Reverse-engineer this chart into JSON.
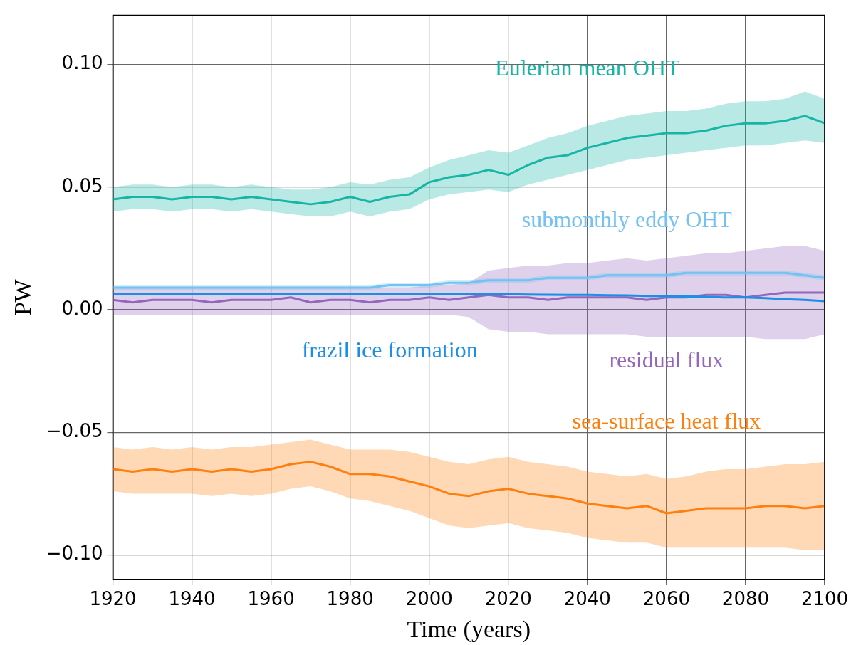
{
  "chart_data": {
    "type": "line",
    "xlabel": "Time (years)",
    "ylabel": "PW",
    "x": [
      1920,
      1925,
      1930,
      1935,
      1940,
      1945,
      1950,
      1955,
      1960,
      1965,
      1970,
      1975,
      1980,
      1985,
      1990,
      1995,
      2000,
      2005,
      2010,
      2015,
      2020,
      2025,
      2030,
      2035,
      2040,
      2045,
      2050,
      2055,
      2060,
      2065,
      2070,
      2075,
      2080,
      2085,
      2090,
      2095,
      2100
    ],
    "xlim": [
      1920,
      2100
    ],
    "xticks": [
      1920,
      1940,
      1960,
      1980,
      2000,
      2020,
      2040,
      2060,
      2080,
      2100
    ],
    "ylim": [
      -0.11,
      0.12
    ],
    "yticks": [
      {
        "value": -0.1,
        "label": "−0.10"
      },
      {
        "value": -0.05,
        "label": "−0.05"
      },
      {
        "value": 0,
        "label": "0.00"
      },
      {
        "value": 0.05,
        "label": "0.05"
      },
      {
        "value": 0.1,
        "label": "0.10"
      }
    ],
    "grid": true,
    "legend": false,
    "marker": "none",
    "line_style": "solid",
    "series": [
      {
        "name": "Eulerian mean OHT",
        "color": "#17b5a6",
        "values": [
          0.045,
          0.046,
          0.046,
          0.045,
          0.046,
          0.046,
          0.045,
          0.046,
          0.045,
          0.044,
          0.043,
          0.044,
          0.046,
          0.044,
          0.046,
          0.047,
          0.052,
          0.054,
          0.055,
          0.057,
          0.055,
          0.059,
          0.062,
          0.063,
          0.066,
          0.068,
          0.07,
          0.071,
          0.072,
          0.072,
          0.073,
          0.075,
          0.076,
          0.076,
          0.077,
          0.079,
          0.076
        ],
        "lower": [
          0.04,
          0.041,
          0.041,
          0.04,
          0.041,
          0.041,
          0.04,
          0.041,
          0.04,
          0.039,
          0.038,
          0.038,
          0.04,
          0.038,
          0.04,
          0.041,
          0.045,
          0.047,
          0.048,
          0.049,
          0.048,
          0.051,
          0.053,
          0.055,
          0.057,
          0.059,
          0.061,
          0.062,
          0.063,
          0.064,
          0.065,
          0.066,
          0.067,
          0.067,
          0.068,
          0.069,
          0.068
        ],
        "upper": [
          0.05,
          0.051,
          0.051,
          0.05,
          0.051,
          0.051,
          0.05,
          0.051,
          0.05,
          0.049,
          0.049,
          0.05,
          0.052,
          0.051,
          0.053,
          0.054,
          0.058,
          0.061,
          0.063,
          0.065,
          0.064,
          0.067,
          0.07,
          0.072,
          0.075,
          0.077,
          0.079,
          0.08,
          0.081,
          0.081,
          0.082,
          0.084,
          0.085,
          0.085,
          0.086,
          0.089,
          0.086
        ]
      },
      {
        "name": "submonthly eddy OHT",
        "color": "#74c2f2",
        "values": [
          0.009,
          0.009,
          0.009,
          0.009,
          0.009,
          0.009,
          0.009,
          0.009,
          0.009,
          0.009,
          0.009,
          0.009,
          0.009,
          0.009,
          0.01,
          0.01,
          0.01,
          0.011,
          0.011,
          0.012,
          0.012,
          0.012,
          0.013,
          0.013,
          0.013,
          0.014,
          0.014,
          0.014,
          0.014,
          0.015,
          0.015,
          0.015,
          0.015,
          0.015,
          0.015,
          0.014,
          0.013
        ],
        "lower": [
          0.008,
          0.008,
          0.008,
          0.008,
          0.008,
          0.008,
          0.008,
          0.008,
          0.008,
          0.008,
          0.008,
          0.008,
          0.008,
          0.008,
          0.009,
          0.009,
          0.009,
          0.01,
          0.01,
          0.011,
          0.011,
          0.011,
          0.012,
          0.012,
          0.012,
          0.013,
          0.013,
          0.013,
          0.013,
          0.014,
          0.014,
          0.014,
          0.014,
          0.014,
          0.014,
          0.013,
          0.012
        ],
        "upper": [
          0.01,
          0.01,
          0.01,
          0.01,
          0.01,
          0.01,
          0.01,
          0.01,
          0.01,
          0.01,
          0.01,
          0.01,
          0.01,
          0.01,
          0.011,
          0.011,
          0.011,
          0.012,
          0.012,
          0.013,
          0.013,
          0.013,
          0.014,
          0.014,
          0.014,
          0.015,
          0.015,
          0.015,
          0.015,
          0.016,
          0.016,
          0.016,
          0.016,
          0.016,
          0.016,
          0.015,
          0.014
        ]
      },
      {
        "name": "frazil ice formation",
        "color": "#1a8fe6",
        "values": [
          0.0065,
          0.0065,
          0.0065,
          0.0065,
          0.0065,
          0.0065,
          0.0065,
          0.0065,
          0.0065,
          0.0065,
          0.0065,
          0.0065,
          0.0065,
          0.0065,
          0.0065,
          0.0065,
          0.0065,
          0.0065,
          0.0065,
          0.0063,
          0.0063,
          0.0062,
          0.0061,
          0.006,
          0.006,
          0.0059,
          0.0058,
          0.0056,
          0.0055,
          0.0054,
          0.0052,
          0.005,
          0.005,
          0.0047,
          0.0043,
          0.004,
          0.0035
        ]
      },
      {
        "name": "residual flux",
        "color": "#9467bd",
        "values": [
          0.004,
          0.003,
          0.004,
          0.004,
          0.004,
          0.003,
          0.004,
          0.004,
          0.004,
          0.005,
          0.003,
          0.004,
          0.004,
          0.003,
          0.004,
          0.004,
          0.005,
          0.004,
          0.005,
          0.006,
          0.005,
          0.005,
          0.004,
          0.005,
          0.005,
          0.005,
          0.005,
          0.004,
          0.005,
          0.005,
          0.006,
          0.006,
          0.005,
          0.006,
          0.007,
          0.007,
          0.007
        ],
        "lower": [
          -0.002,
          -0.002,
          -0.002,
          -0.002,
          -0.002,
          -0.002,
          -0.002,
          -0.002,
          -0.002,
          -0.002,
          -0.002,
          -0.002,
          -0.002,
          -0.002,
          -0.002,
          -0.002,
          -0.002,
          -0.002,
          -0.003,
          -0.008,
          -0.009,
          -0.009,
          -0.01,
          -0.01,
          -0.01,
          -0.01,
          -0.01,
          -0.011,
          -0.011,
          -0.011,
          -0.011,
          -0.011,
          -0.011,
          -0.012,
          -0.012,
          -0.012,
          -0.01
        ],
        "upper": [
          0.009,
          0.009,
          0.009,
          0.009,
          0.009,
          0.009,
          0.009,
          0.009,
          0.009,
          0.009,
          0.009,
          0.009,
          0.009,
          0.009,
          0.009,
          0.009,
          0.01,
          0.01,
          0.011,
          0.016,
          0.017,
          0.018,
          0.018,
          0.019,
          0.019,
          0.02,
          0.021,
          0.02,
          0.021,
          0.022,
          0.023,
          0.023,
          0.024,
          0.025,
          0.026,
          0.026,
          0.024
        ]
      },
      {
        "name": "sea-surface heat flux",
        "color": "#ff7f0e",
        "values": [
          -0.065,
          -0.066,
          -0.065,
          -0.066,
          -0.065,
          -0.066,
          -0.065,
          -0.066,
          -0.065,
          -0.063,
          -0.062,
          -0.064,
          -0.067,
          -0.067,
          -0.068,
          -0.07,
          -0.072,
          -0.075,
          -0.076,
          -0.074,
          -0.073,
          -0.075,
          -0.076,
          -0.077,
          -0.079,
          -0.08,
          -0.081,
          -0.08,
          -0.083,
          -0.082,
          -0.081,
          -0.081,
          -0.081,
          -0.08,
          -0.08,
          -0.081,
          -0.08
        ],
        "lower": [
          -0.074,
          -0.075,
          -0.075,
          -0.075,
          -0.075,
          -0.076,
          -0.075,
          -0.076,
          -0.075,
          -0.073,
          -0.072,
          -0.074,
          -0.077,
          -0.078,
          -0.08,
          -0.082,
          -0.085,
          -0.088,
          -0.089,
          -0.088,
          -0.087,
          -0.089,
          -0.09,
          -0.091,
          -0.093,
          -0.094,
          -0.095,
          -0.095,
          -0.097,
          -0.097,
          -0.097,
          -0.097,
          -0.097,
          -0.097,
          -0.097,
          -0.098,
          -0.098
        ],
        "upper": [
          -0.056,
          -0.057,
          -0.056,
          -0.057,
          -0.056,
          -0.057,
          -0.056,
          -0.056,
          -0.055,
          -0.054,
          -0.053,
          -0.055,
          -0.057,
          -0.057,
          -0.057,
          -0.058,
          -0.06,
          -0.062,
          -0.063,
          -0.061,
          -0.06,
          -0.062,
          -0.063,
          -0.064,
          -0.066,
          -0.067,
          -0.068,
          -0.067,
          -0.069,
          -0.068,
          -0.066,
          -0.065,
          -0.065,
          -0.064,
          -0.063,
          -0.063,
          -0.062
        ]
      }
    ]
  }
}
